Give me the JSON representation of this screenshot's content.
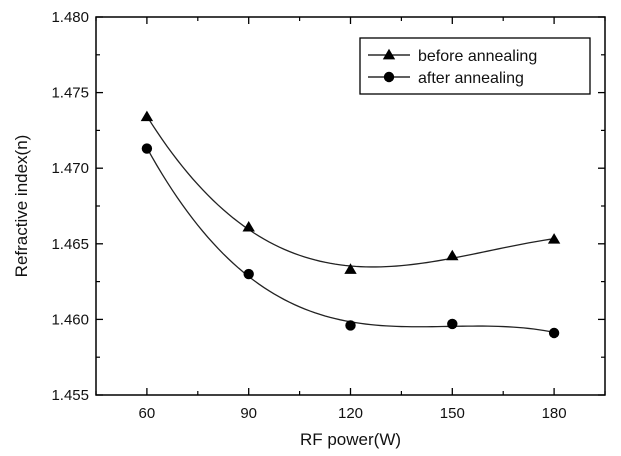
{
  "chart_data": {
    "type": "scatter",
    "xlabel": "RF power(W)",
    "ylabel": "Refractive index(n)",
    "xlim": [
      45,
      195
    ],
    "ylim": [
      1.455,
      1.48
    ],
    "xticks": [
      60,
      90,
      120,
      150,
      180
    ],
    "yticks": [
      1.455,
      1.46,
      1.465,
      1.47,
      1.475,
      1.48
    ],
    "xtick_labels": [
      "60",
      "90",
      "120",
      "150",
      "180"
    ],
    "ytick_labels": [
      "1.455",
      "1.460",
      "1.465",
      "1.470",
      "1.475",
      "1.480"
    ],
    "grid": false,
    "legend_position": "top-right",
    "series": [
      {
        "name": "before annealing",
        "marker": "triangle",
        "x": [
          60,
          90,
          120,
          150,
          180
        ],
        "y": [
          1.4734,
          1.4661,
          1.4633,
          1.4642,
          1.4653
        ],
        "fit_curve": true
      },
      {
        "name": "after annealing",
        "marker": "circle",
        "x": [
          60,
          90,
          120,
          150,
          180
        ],
        "y": [
          1.4713,
          1.463,
          1.4596,
          1.4597,
          1.4591
        ],
        "fit_curve": true
      }
    ],
    "colors": {
      "marker": "#000000",
      "line": "#222222",
      "axis": "#000000"
    }
  }
}
